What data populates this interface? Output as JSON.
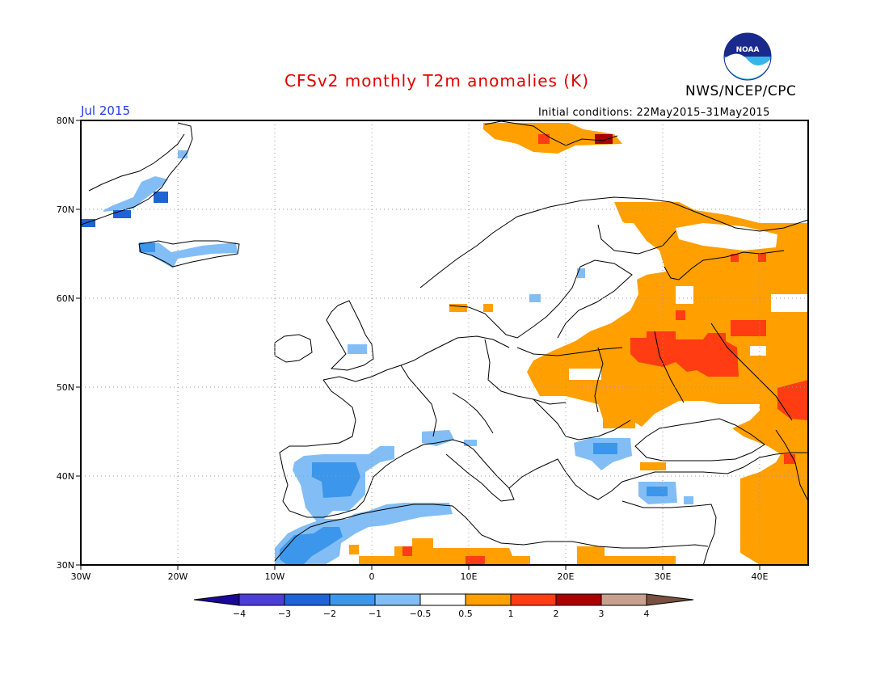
{
  "header": {
    "title": "CFSv2 monthly T2m anomalies (K)",
    "period": "Jul 2015",
    "initial_conditions": "Initial conditions: 22May2015–31May2015",
    "organization": "NWS/NCEP/CPC",
    "logo_text": "NOAA"
  },
  "map": {
    "lat_labels": [
      "80N",
      "70N",
      "60N",
      "50N",
      "40N",
      "30N"
    ],
    "lon_labels": [
      "30W",
      "20W",
      "10W",
      "0",
      "10E",
      "20E",
      "30E",
      "40E"
    ]
  },
  "colorbar": {
    "tick_labels": [
      "−4",
      "−3",
      "−2",
      "−1",
      "−0.5",
      "0.5",
      "1",
      "2",
      "3",
      "4"
    ],
    "colors": {
      "lt_minus4": "#1c0896",
      "m4_m3": "#4b3fd6",
      "m3_m2": "#1e64d4",
      "m2_m1": "#3c96ec",
      "m1_m05": "#82bef5",
      "neutral": "#ffffff",
      "p05_p1": "#ff9f00",
      "p1_p2": "#ff3c12",
      "p2_p3": "#a80000",
      "p3_p4": "#c8a090",
      "gt_p4": "#7a5040"
    }
  },
  "anomaly_regions": [
    {
      "name": "Greenland coast",
      "category": "m2_m1"
    },
    {
      "name": "Greenland south tip",
      "category": "m3_m2"
    },
    {
      "name": "Iceland",
      "category": "m1_m05"
    },
    {
      "name": "Iberia",
      "category": "m2_m1"
    },
    {
      "name": "Northwest Africa",
      "category": "m1_m05"
    },
    {
      "name": "Svalbard",
      "category": "p05_p1"
    },
    {
      "name": "Northern Russia",
      "category": "p05_p1"
    },
    {
      "name": "Eastern Europe",
      "category": "p05_p1"
    },
    {
      "name": "Belarus / Western Russia",
      "category": "p1_p2"
    },
    {
      "name": "Southern Russia",
      "category": "p1_p2"
    },
    {
      "name": "North Africa",
      "category": "p05_p1"
    }
  ]
}
